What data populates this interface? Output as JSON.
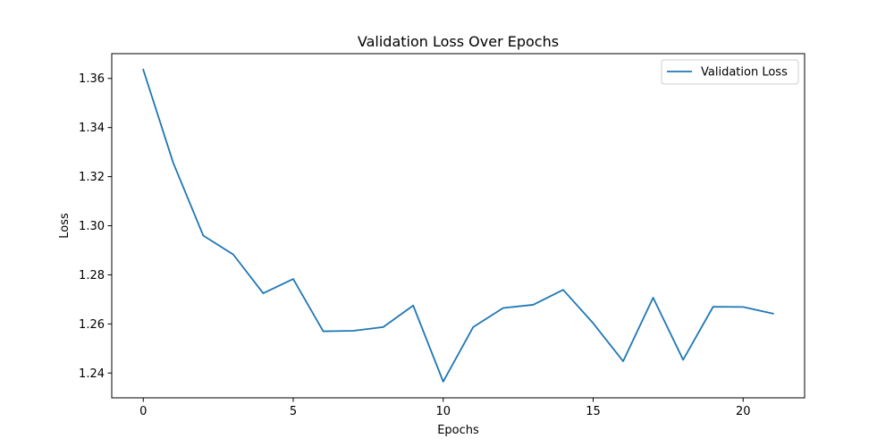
{
  "chart_data": {
    "type": "line",
    "title": "Validation Loss Over Epochs",
    "xlabel": "Epochs",
    "ylabel": "Loss",
    "xlim": [
      -1.05,
      22.05
    ],
    "ylim": [
      1.2299,
      1.3701
    ],
    "xticks": [
      0,
      5,
      10,
      15,
      20
    ],
    "yticks": [
      1.24,
      1.26,
      1.28,
      1.3,
      1.32,
      1.34,
      1.36
    ],
    "ytick_labels": [
      "1.24",
      "1.26",
      "1.28",
      "1.30",
      "1.32",
      "1.34",
      "1.36"
    ],
    "grid": false,
    "legend_position": "top-right",
    "series": [
      {
        "name": "Validation Loss",
        "color": "#1f77b4",
        "x": [
          0,
          1,
          2,
          3,
          4,
          5,
          6,
          7,
          8,
          9,
          10,
          11,
          12,
          13,
          14,
          15,
          16,
          17,
          18,
          19,
          20,
          21
        ],
        "y": [
          1.3636,
          1.3256,
          1.296,
          1.2883,
          1.2725,
          1.2783,
          1.257,
          1.2572,
          1.2587,
          1.2675,
          1.2365,
          1.2587,
          1.2665,
          1.2678,
          1.2739,
          1.2603,
          1.2448,
          1.2707,
          1.2454,
          1.267,
          1.2669,
          1.2642
        ]
      }
    ]
  }
}
